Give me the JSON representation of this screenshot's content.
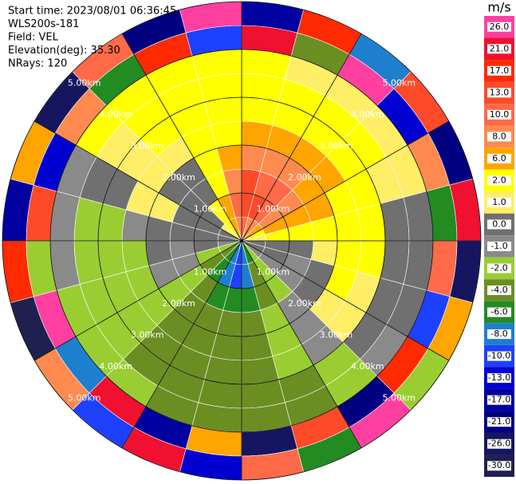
{
  "chart_data": {
    "type": "ppi",
    "header": [
      "Start time: 2023/08/01 06:36:45",
      "WLS200s-181",
      "Field: VEL",
      "Elevation(deg): 35.30",
      "NRays: 120"
    ],
    "colorbar_label": "m/s",
    "colorbar": {
      "ticks": [
        {
          "value": 26,
          "label": "26.0"
        },
        {
          "value": 21,
          "label": "21.0"
        },
        {
          "value": 17,
          "label": "17.0"
        },
        {
          "value": 13,
          "label": "13.0"
        },
        {
          "value": 10,
          "label": "10.0"
        },
        {
          "value": 8,
          "label": "8.0"
        },
        {
          "value": 6,
          "label": "6.0"
        },
        {
          "value": 2,
          "label": "2.0"
        },
        {
          "value": 1,
          "label": "1.0"
        },
        {
          "value": 0,
          "label": "0.0"
        },
        {
          "value": -1,
          "label": "-1.0"
        },
        {
          "value": -2,
          "label": "-2.0"
        },
        {
          "value": -4,
          "label": "-4.0"
        },
        {
          "value": -6,
          "label": "-6.0"
        },
        {
          "value": -8,
          "label": "-8.0"
        },
        {
          "value": -10,
          "label": "-10.0"
        },
        {
          "value": -13,
          "label": "-13.0"
        },
        {
          "value": -17,
          "label": "-17.0"
        },
        {
          "value": -21,
          "label": "-21.0"
        },
        {
          "value": -26,
          "label": "-26.0"
        },
        {
          "value": -30,
          "label": "-30.0"
        }
      ],
      "colors": [
        "#ff40a0",
        "#f01030",
        "#ff2a00",
        "#ff4a2a",
        "#ff6a48",
        "#ff8a50",
        "#ffa500",
        "#ffff00",
        "#ffee66",
        "#707070",
        "#8a8a8a",
        "#9acd32",
        "#6b8e23",
        "#228b22",
        "#1e7fcf",
        "#1e40ff",
        "#0000d0",
        "#0000a0",
        "#000080",
        "#161660",
        "#202050"
      ]
    },
    "rings": [
      {
        "value": 1,
        "label": "1.00km"
      },
      {
        "value": 2,
        "label": "2.00km"
      },
      {
        "value": 3,
        "label": "3.00km"
      },
      {
        "value": 4,
        "label": "4.00km"
      },
      {
        "value": 5,
        "label": "5.00km"
      }
    ],
    "azimuths": [
      0,
      15,
      30,
      45,
      60,
      75,
      90,
      105,
      120,
      135,
      150,
      165,
      180,
      195,
      210,
      225,
      240,
      255,
      270,
      285,
      300,
      315,
      330,
      345
    ],
    "range_edges": [
      0,
      0.5,
      1,
      1.5,
      2,
      2.5,
      3,
      3.5,
      4,
      4.5,
      5
    ],
    "values": [
      [
        10,
        13,
        13,
        8,
        6,
        2,
        2,
        2,
        21,
        -17
      ],
      [
        8,
        13,
        10,
        8,
        6,
        2,
        2,
        1,
        -4,
        17
      ],
      [
        8,
        10,
        10,
        8,
        6,
        2,
        2,
        1,
        26,
        -8
      ],
      [
        6,
        8,
        8,
        6,
        6,
        2,
        2,
        1,
        -13,
        13
      ],
      [
        2,
        6,
        6,
        6,
        2,
        2,
        1,
        1,
        8,
        -21
      ],
      [
        1,
        2,
        2,
        2,
        2,
        2,
        0,
        0,
        -6,
        21
      ],
      [
        0,
        0,
        0,
        1,
        2,
        2,
        0,
        0,
        10,
        -26
      ],
      [
        0,
        0,
        -1,
        0,
        2,
        1,
        0,
        0,
        -10,
        6
      ],
      [
        -1,
        -1,
        -1,
        0,
        1,
        1,
        0,
        -1,
        17,
        -2
      ],
      [
        -2,
        -2,
        -2,
        -1,
        -1,
        -1,
        -2,
        -2,
        -21,
        26
      ],
      [
        -6,
        -4,
        -4,
        -2,
        -2,
        -2,
        -4,
        -4,
        13,
        -6
      ],
      [
        -8,
        -8,
        -6,
        -4,
        -4,
        -4,
        -4,
        -4,
        -26,
        10
      ],
      [
        -10,
        -10,
        -6,
        -4,
        -4,
        -4,
        -4,
        -4,
        6,
        -13
      ],
      [
        -8,
        -8,
        -6,
        -4,
        -4,
        -4,
        -4,
        -4,
        -17,
        21
      ],
      [
        -6,
        -6,
        -4,
        -4,
        -4,
        -4,
        -4,
        -2,
        21,
        -10
      ],
      [
        -4,
        -4,
        -2,
        -2,
        -2,
        -2,
        -2,
        -2,
        -8,
        8
      ],
      [
        -2,
        -2,
        -1,
        -1,
        -2,
        -2,
        -2,
        -2,
        26,
        -30
      ],
      [
        -1,
        0,
        -1,
        0,
        -2,
        -2,
        -2,
        -1,
        -2,
        17
      ],
      [
        0,
        0,
        0,
        0,
        -1,
        -2,
        -2,
        -1,
        13,
        -17
      ],
      [
        0,
        0,
        0,
        1,
        1,
        0,
        0,
        -1,
        -13,
        6
      ],
      [
        1,
        0,
        0,
        0,
        1,
        1,
        1,
        2,
        8,
        -26
      ],
      [
        2,
        2,
        0,
        0,
        1,
        2,
        2,
        2,
        -6,
        10
      ],
      [
        6,
        6,
        2,
        2,
        2,
        2,
        2,
        2,
        17,
        -21
      ],
      [
        8,
        10,
        8,
        6,
        2,
        2,
        2,
        2,
        -10,
        26
      ]
    ]
  }
}
